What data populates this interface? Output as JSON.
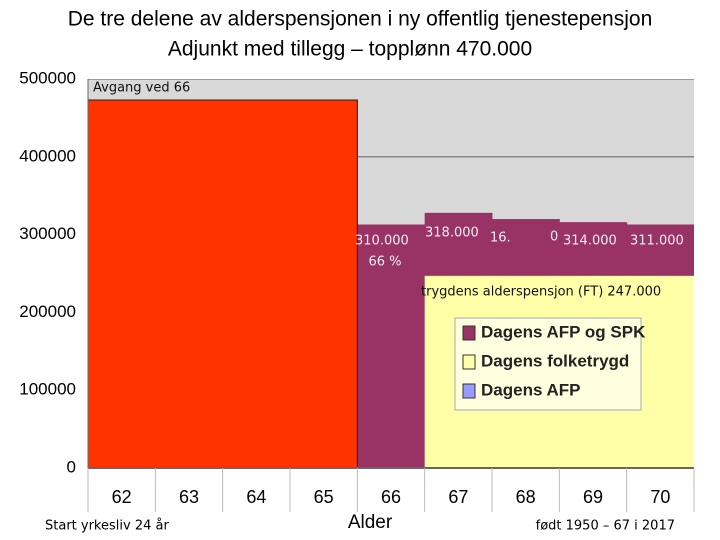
{
  "chart_data": {
    "type": "bar",
    "title": "De tre delene av alderspensjonen i ny offentlig tjenestepensjon",
    "subtitle": "Adjunkt med tillegg – topplønn 470.000",
    "x_label": "Alder",
    "categories": [
      "62",
      "63",
      "64",
      "65",
      "66",
      "67",
      "68",
      "69",
      "70"
    ],
    "series": [
      {
        "color": "#ff3300",
        "values": [
          473000,
          473000,
          473000,
          473000,
          null,
          null,
          null,
          null,
          null
        ]
      },
      {
        "name": "Dagens AFP og SPK",
        "color": "#993366",
        "values": [
          null,
          null,
          null,
          null,
          313000,
          328000,
          320000,
          316000,
          313000
        ]
      },
      {
        "name": "Dagens folketrygd",
        "color": "#ffffa8",
        "values": [
          null,
          null,
          null,
          null,
          null,
          247000,
          247000,
          247000,
          247000
        ]
      },
      {
        "name": "Dagens AFP",
        "color": "#9999ff",
        "values": [
          null,
          null,
          null,
          null,
          null,
          null,
          null,
          null,
          null
        ]
      }
    ],
    "ylim": [
      0,
      500000
    ],
    "yticks": [
      0,
      100000,
      200000,
      300000,
      400000,
      500000
    ],
    "grid": true,
    "annotations": [
      "Avgang ved 66",
      "310.000",
      "66 %",
      "318.000",
      "16.",
      "0",
      "314.000",
      "311.000",
      "trygdens alderspensjon (FT) 247.000"
    ],
    "footer_left": "Start yrkesliv 24 år",
    "footer_right": "født 1950 – 67 i 2017"
  }
}
